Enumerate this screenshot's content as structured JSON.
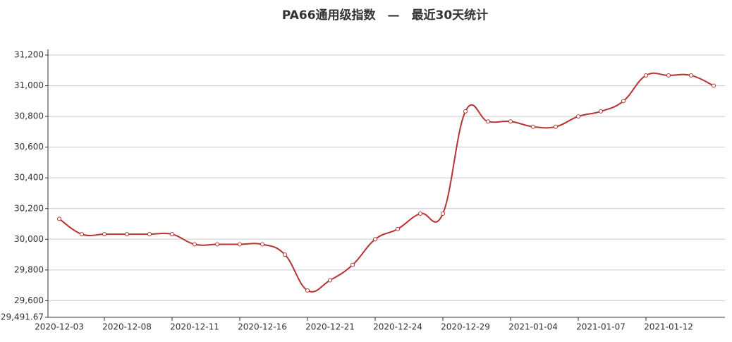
{
  "chart_data": {
    "type": "line",
    "title": "PA66通用级指数　—　最近30天统计",
    "categories": [
      "2020-12-03",
      null,
      null,
      "2020-12-08",
      null,
      null,
      "2020-12-11",
      null,
      null,
      "2020-12-16",
      null,
      null,
      "2020-12-21",
      null,
      null,
      "2020-12-24",
      null,
      null,
      "2020-12-29",
      null,
      null,
      "2021-01-04",
      null,
      null,
      "2021-01-07",
      null,
      null,
      "2021-01-12",
      null,
      null
    ],
    "series": [
      {
        "color": "#b83232",
        "values": [
          30133,
          30033,
          30033,
          30033,
          30033,
          30033,
          29967,
          29967,
          29967,
          29967,
          29900,
          29667,
          29733,
          29833,
          30000,
          30067,
          30167,
          30167,
          30833,
          30767,
          30767,
          30733,
          30733,
          30800,
          30833,
          30900,
          31067,
          31067,
          31067,
          31000
        ]
      }
    ],
    "ylim": [
      29491.67,
      31200
    ],
    "yticks": [
      {
        "value": 29491.67,
        "label": "29,491.67"
      },
      {
        "value": 29600,
        "label": "29,600"
      },
      {
        "value": 29800,
        "label": "29,800"
      },
      {
        "value": 30000,
        "label": "30,000"
      },
      {
        "value": 30200,
        "label": "30,200"
      },
      {
        "value": 30400,
        "label": "30,400"
      },
      {
        "value": 30600,
        "label": "30,600"
      },
      {
        "value": 30800,
        "label": "30,800"
      },
      {
        "value": 31000,
        "label": "31,000"
      },
      {
        "value": 31200,
        "label": "31,200"
      }
    ],
    "grid": true
  }
}
